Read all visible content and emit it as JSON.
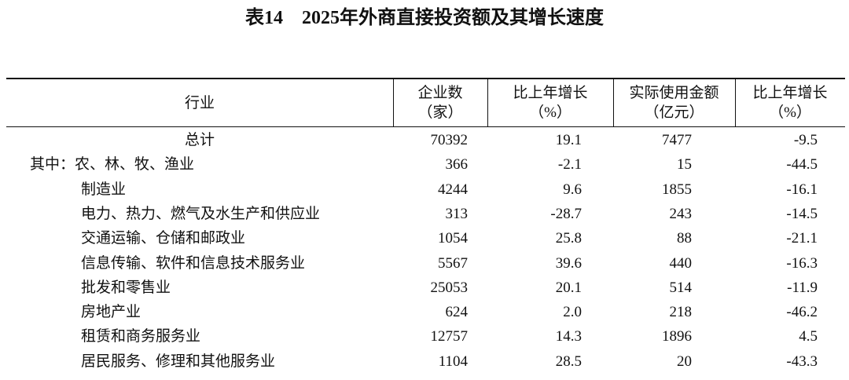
{
  "title": "表14　2025年外商直接投资额及其增长速度",
  "table": {
    "header": [
      [
        "行业"
      ],
      [
        "企业数",
        "（家）"
      ],
      [
        "比上年增长",
        "（%）"
      ],
      [
        "实际使用金额",
        "（亿元）"
      ],
      [
        "比上年增长",
        "（%）"
      ]
    ],
    "rows": [
      [
        "总计",
        "70392",
        "19.1",
        "7477",
        "-9.5"
      ],
      [
        "其中：农、林、牧、渔业",
        "366",
        "-2.1",
        "15",
        "-44.5"
      ],
      [
        "制造业",
        "4244",
        "9.6",
        "1855",
        "-16.1"
      ],
      [
        "电力、热力、燃气及水生产和供应业",
        "313",
        "-28.7",
        "243",
        "-14.5"
      ],
      [
        "交通运输、仓储和邮政业",
        "1054",
        "25.8",
        "88",
        "-21.1"
      ],
      [
        "信息传输、软件和信息技术服务业",
        "5567",
        "39.6",
        "440",
        "-16.3"
      ],
      [
        "批发和零售业",
        "25053",
        "20.1",
        "514",
        "-11.9"
      ],
      [
        "房地产业",
        "624",
        "2.0",
        "218",
        "-46.2"
      ],
      [
        "租赁和商务服务业",
        "12757",
        "14.3",
        "1896",
        "4.5"
      ],
      [
        "居民服务、修理和其他服务业",
        "1104",
        "28.5",
        "20",
        "-43.3"
      ]
    ]
  }
}
